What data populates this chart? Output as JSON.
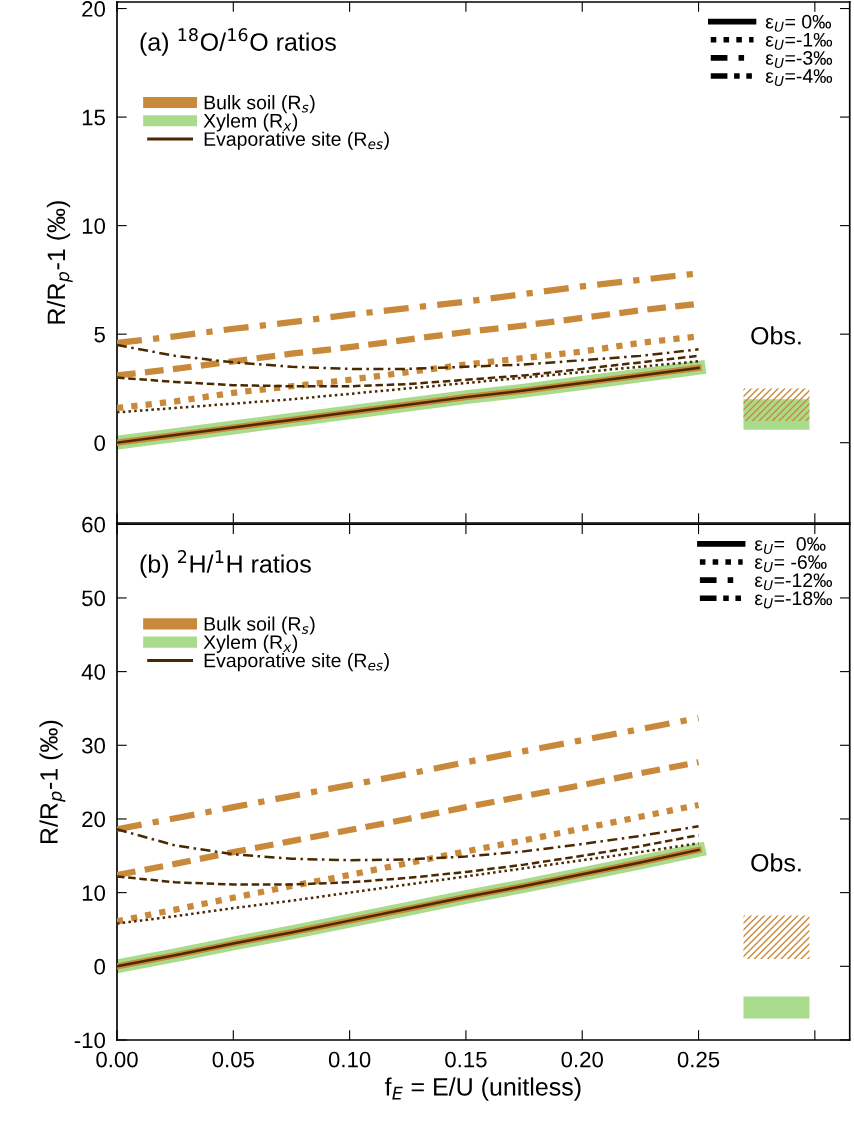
{
  "chart_data": [
    {
      "type": "line",
      "title": "(a) $^{18}$O/$^{16}$O ratios",
      "ylabel": "R/R$_{p}$-1 (‰)",
      "x": [
        0,
        0.025,
        0.05,
        0.075,
        0.1,
        0.125,
        0.15,
        0.175,
        0.2,
        0.225,
        0.25
      ],
      "xlim": [
        0,
        0.315
      ],
      "ylim": [
        -3.7,
        20.3
      ],
      "xticks": [
        0,
        0.05,
        0.1,
        0.15,
        0.2,
        0.25,
        {
          "value": 0.3,
          "label": null
        }
      ],
      "yticks": [
        0,
        5,
        10,
        15,
        20
      ],
      "tick_labels": "y",
      "legend": "top left",
      "grid": false,
      "series": [
        {
          "name": "Xylem (R$_{x}$)",
          "color": "#a8dc8c",
          "line_style": "solid",
          "values": [
            0,
            0.35,
            0.7,
            1.05,
            1.4,
            1.75,
            2.1,
            2.4,
            2.75,
            3.1,
            3.45
          ]
        },
        {
          "name": "Bulk soil (R$_{s}$)",
          "color": "#c88a3a",
          "line_style": "solid",
          "values": [
            0,
            0.35,
            0.7,
            1.05,
            1.4,
            1.75,
            2.1,
            2.4,
            2.75,
            3.1,
            3.45
          ]
        },
        {
          "color": "#c88a3a",
          "line_style": "dotted",
          "values": [
            1.6,
            1.9,
            2.3,
            2.6,
            2.9,
            3.25,
            3.6,
            3.9,
            4.2,
            4.6,
            4.9
          ]
        },
        {
          "color": "#c88a3a",
          "line_style": "dashed",
          "values": [
            3.1,
            3.4,
            3.75,
            4.1,
            4.4,
            4.75,
            5.1,
            5.4,
            5.75,
            6.1,
            6.4
          ]
        },
        {
          "color": "#c88a3a",
          "line_style": "dashdot",
          "values": [
            4.6,
            4.9,
            5.25,
            5.55,
            5.9,
            6.2,
            6.5,
            6.85,
            7.2,
            7.5,
            7.8
          ]
        },
        {
          "name": "Evaporative site (R$_{es}$)",
          "color": "#4a2800",
          "line_style": "solid",
          "values": [
            0,
            0.35,
            0.7,
            1.05,
            1.4,
            1.75,
            2.1,
            2.4,
            2.75,
            3.1,
            3.45
          ]
        },
        {
          "color": "#4a2800",
          "line_style": "dotted",
          "values": [
            1.4,
            1.6,
            1.8,
            2.0,
            2.25,
            2.5,
            2.75,
            3.0,
            3.25,
            3.5,
            3.75
          ]
        },
        {
          "color": "#4a2800",
          "line_style": "dashed",
          "values": [
            3.0,
            2.8,
            2.65,
            2.6,
            2.6,
            2.7,
            2.9,
            3.1,
            3.4,
            3.7,
            4.0
          ]
        },
        {
          "color": "#4a2800",
          "line_style": "dashdot",
          "values": [
            4.5,
            4.0,
            3.7,
            3.5,
            3.4,
            3.4,
            3.5,
            3.6,
            3.8,
            4.0,
            4.3
          ]
        }
      ],
      "bands": [
        {
          "axis": "y",
          "from": 0.6,
          "to": 2.0,
          "color": "#a8dc8c"
        },
        {
          "axis": "y",
          "from": 1.0,
          "to": 2.5,
          "color": "#c88a3a"
        }
      ],
      "annotations": [
        "ε$_{U}$= 0‰",
        "ε$_{U}$=-1‰",
        "ε$_{U}$=-3‰",
        "ε$_{U}$=-4‰",
        "Obs."
      ]
    },
    {
      "type": "line",
      "title": "(b) $^{2}$H/$^{1}$H ratios",
      "ylabel": "R/R$_{p}$-1 (‰)",
      "xlabel": "f$_{E}$ = E/U (unitless)",
      "x": [
        0,
        0.025,
        0.05,
        0.075,
        0.1,
        0.125,
        0.15,
        0.175,
        0.2,
        0.225,
        0.25
      ],
      "xlim": [
        0,
        0.315
      ],
      "ylim": [
        -10,
        60
      ],
      "xticks": [
        {
          "value": 0,
          "label": "0.00"
        },
        {
          "value": 0.05,
          "label": "0.05"
        },
        {
          "value": 0.1,
          "label": "0.10"
        },
        {
          "value": 0.15,
          "label": "0.15"
        },
        {
          "value": 0.2,
          "label": "0.20"
        },
        {
          "value": 0.25,
          "label": "0.25"
        },
        {
          "value": 0.3,
          "label": null
        }
      ],
      "yticks": [
        -10,
        0,
        10,
        20,
        30,
        40,
        50,
        60
      ],
      "legend": "top left",
      "grid": false,
      "series": [
        {
          "name": "Xylem (R$_{x}$)",
          "color": "#a8dc8c",
          "line_style": "solid",
          "values": [
            0,
            1.5,
            3.1,
            4.6,
            6.2,
            7.8,
            9.4,
            10.9,
            12.5,
            14.1,
            15.8
          ]
        },
        {
          "name": "Bulk soil (R$_{s}$)",
          "color": "#c88a3a",
          "line_style": "solid",
          "values": [
            0,
            1.5,
            3.1,
            4.6,
            6.2,
            7.8,
            9.4,
            10.9,
            12.5,
            14.1,
            15.8
          ]
        },
        {
          "color": "#c88a3a",
          "line_style": "dotted",
          "values": [
            6.1,
            7.7,
            9.3,
            10.9,
            12.4,
            14.0,
            15.6,
            17.1,
            18.7,
            20.3,
            21.9
          ]
        },
        {
          "color": "#c88a3a",
          "line_style": "dashed",
          "values": [
            12.4,
            13.9,
            15.5,
            17.0,
            18.5,
            20.0,
            21.6,
            23.1,
            24.6,
            26.2,
            27.7
          ]
        },
        {
          "color": "#c88a3a",
          "line_style": "dashdot",
          "values": [
            18.6,
            20.1,
            21.6,
            23.1,
            24.6,
            26.1,
            27.7,
            29.2,
            30.7,
            32.2,
            33.7
          ]
        },
        {
          "name": "Evaporative site (R$_{es}$)",
          "color": "#4a2800",
          "line_style": "solid",
          "values": [
            0,
            1.5,
            3.1,
            4.6,
            6.2,
            7.8,
            9.4,
            10.9,
            12.5,
            14.1,
            15.8
          ]
        },
        {
          "color": "#4a2800",
          "line_style": "dotted",
          "values": [
            5.8,
            6.8,
            7.9,
            8.9,
            10.0,
            11.1,
            12.2,
            13.3,
            14.4,
            15.5,
            16.7
          ]
        },
        {
          "color": "#4a2800",
          "line_style": "dashed",
          "values": [
            12.2,
            11.4,
            11.1,
            11.1,
            11.4,
            12.0,
            12.8,
            13.8,
            15.0,
            16.3,
            17.8
          ]
        },
        {
          "color": "#4a2800",
          "line_style": "dashdot",
          "values": [
            18.6,
            16.4,
            15.2,
            14.6,
            14.4,
            14.5,
            14.9,
            15.6,
            16.6,
            17.7,
            19.0
          ]
        }
      ],
      "bands": [
        {
          "axis": "y",
          "from": -7.1,
          "to": -4.1,
          "color": "#a8dc8c"
        },
        {
          "axis": "y",
          "from": 1.0,
          "to": 6.9,
          "color": "#c88a3a"
        }
      ],
      "annotations": [
        "ε$_{U}$=  0‰",
        "ε$_{U}$= -6‰",
        "ε$_{U}$=-12‰",
        "ε$_{U}$=-18‰",
        "Obs."
      ]
    }
  ]
}
